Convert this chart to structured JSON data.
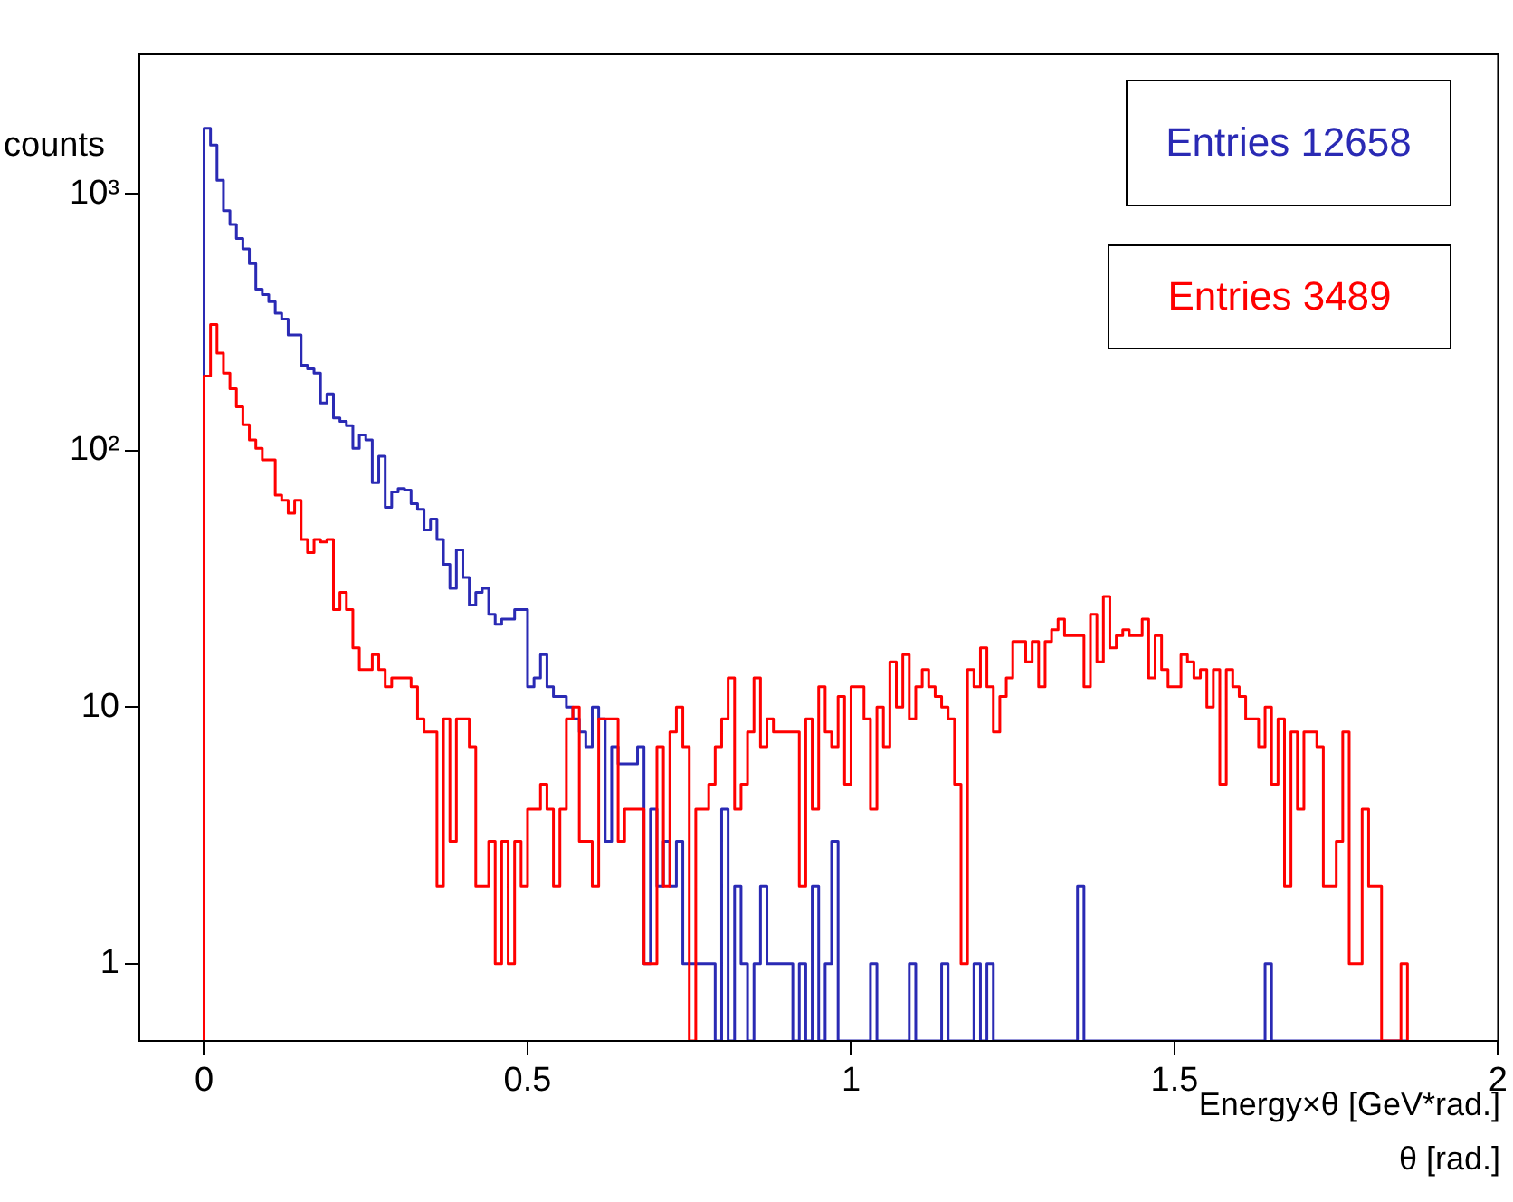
{
  "chart_data": {
    "type": "histogram",
    "xlabel": "Energy×θ [GeV*rad.]",
    "ylabel": "counts",
    "annotations": [
      "Entries 12658",
      "Entries 3489",
      "θ [rad.]"
    ],
    "xlim": [
      -0.1,
      2
    ],
    "xticks": [
      0,
      0.5,
      1,
      1.5,
      2
    ],
    "ylim": [
      0.5,
      3500
    ],
    "yticks": [
      1,
      10,
      {
        "value": 100,
        "label": "10²"
      },
      {
        "value": 1000,
        "label": "10³"
      }
    ],
    "log": "y",
    "bins": [
      0,
      0.01,
      0.02,
      0.03,
      0.04,
      0.05,
      0.06,
      0.07,
      0.08,
      0.09,
      0.1,
      0.11,
      0.12,
      0.13,
      0.14,
      0.15,
      0.16,
      0.17,
      0.18,
      0.19,
      0.2,
      0.21,
      0.22,
      0.23,
      0.24,
      0.25,
      0.26,
      0.27,
      0.28,
      0.29,
      0.3,
      0.31,
      0.32,
      0.33,
      0.34,
      0.35,
      0.36,
      0.37,
      0.38,
      0.39,
      0.4,
      0.41,
      0.42,
      0.43,
      0.44,
      0.45,
      0.46,
      0.47,
      0.48,
      0.49,
      0.5,
      0.51,
      0.52,
      0.53,
      0.54,
      0.55,
      0.56,
      0.57,
      0.58,
      0.59,
      0.6,
      0.61,
      0.62,
      0.63,
      0.64,
      0.65,
      0.66,
      0.67,
      0.68,
      0.69,
      0.7,
      0.71,
      0.72,
      0.73,
      0.74,
      0.75,
      0.76,
      0.77,
      0.78,
      0.79,
      0.8,
      0.81,
      0.82,
      0.83,
      0.84,
      0.85,
      0.86,
      0.87,
      0.88,
      0.89,
      0.9,
      0.91,
      0.92,
      0.93,
      0.94,
      0.95,
      0.96,
      0.97,
      0.98,
      0.99,
      1,
      1.01,
      1.02,
      1.03,
      1.04,
      1.05,
      1.06,
      1.07,
      1.08,
      1.09,
      1.1,
      1.11,
      1.12,
      1.13,
      1.14,
      1.15,
      1.16,
      1.17,
      1.18,
      1.19,
      1.2,
      1.21,
      1.22,
      1.23,
      1.24,
      1.25,
      1.26,
      1.27,
      1.28,
      1.29,
      1.3,
      1.31,
      1.32,
      1.33,
      1.34,
      1.35,
      1.36,
      1.37,
      1.38,
      1.39,
      1.4,
      1.41,
      1.42,
      1.43,
      1.44,
      1.45,
      1.46,
      1.47,
      1.48,
      1.49,
      1.5,
      1.51,
      1.52,
      1.53,
      1.54,
      1.55,
      1.56,
      1.57,
      1.58,
      1.59,
      1.6,
      1.61,
      1.62,
      1.63,
      1.64,
      1.65,
      1.66,
      1.67,
      1.68,
      1.69,
      1.7,
      1.71,
      1.72,
      1.73,
      1.74,
      1.75,
      1.76,
      1.77,
      1.78,
      1.79,
      1.8,
      1.81,
      1.82,
      1.83,
      1.84,
      1.85,
      1.86
    ],
    "series": [
      {
        "color": "#2a2ab4",
        "values": [
          1800,
          1550,
          1130,
          860,
          760,
          670,
          610,
          535,
          425,
          405,
          380,
          343,
          325,
          282,
          282,
          215,
          208,
          200,
          153,
          166,
          134,
          130,
          125,
          102,
          115,
          110,
          75,
          95,
          60,
          69,
          71,
          70,
          62,
          59,
          49,
          54,
          45,
          36,
          29,
          41,
          32,
          25,
          28,
          29,
          23,
          21,
          22,
          22,
          24,
          24,
          12,
          13,
          16,
          12,
          11,
          11,
          10,
          9,
          8,
          7,
          10,
          9,
          3,
          7,
          6,
          6,
          6,
          7,
          1,
          4,
          2,
          3,
          2,
          3,
          1,
          1,
          1,
          1,
          1,
          null,
          4,
          null,
          2,
          1,
          null,
          1,
          2,
          1,
          1,
          1,
          1,
          null,
          1,
          null,
          2,
          null,
          1,
          3,
          null,
          null,
          null,
          null,
          null,
          1,
          null,
          null,
          null,
          null,
          null,
          1,
          null,
          null,
          null,
          null,
          1,
          null,
          null,
          null,
          null,
          1,
          null,
          1,
          null,
          null,
          null,
          null,
          null,
          null,
          null,
          null,
          null,
          null,
          null,
          null,
          null,
          2,
          null,
          null,
          null,
          null,
          null,
          null,
          null,
          null,
          null,
          null,
          null,
          null,
          null,
          null,
          null,
          null,
          null,
          null,
          null,
          null,
          null,
          null,
          null,
          null,
          null,
          null,
          null,
          null,
          1,
          null,
          null,
          null,
          null,
          null,
          null,
          null,
          null,
          null,
          null,
          null,
          null,
          null,
          null,
          null,
          null,
          null,
          null,
          null,
          null,
          null
        ]
      },
      {
        "color": "#ff0000",
        "values": [
          195,
          310,
          240,
          200,
          174,
          148,
          126,
          110,
          102,
          92,
          92,
          67,
          64,
          57,
          64,
          45,
          40,
          45,
          44,
          45,
          24,
          28,
          24,
          17,
          14,
          14,
          16,
          14,
          12,
          13,
          13,
          13,
          12,
          9,
          8,
          8,
          2,
          9,
          3,
          9,
          9,
          7,
          2,
          2,
          3,
          1,
          3,
          1,
          3,
          2,
          4,
          4,
          5,
          4,
          2,
          4,
          9,
          10,
          3,
          3,
          2,
          9,
          9,
          9,
          3,
          4,
          4,
          4,
          1,
          1,
          7,
          2,
          8,
          10,
          7,
          null,
          4,
          4,
          5,
          7,
          9,
          13,
          4,
          5,
          8,
          13,
          7,
          9,
          8,
          8,
          8,
          8,
          2,
          9,
          4,
          12,
          8,
          7,
          11,
          5,
          12,
          12,
          9,
          4,
          10,
          7,
          15,
          10,
          16,
          9,
          12,
          14,
          12,
          11,
          10,
          9,
          5,
          1,
          14,
          12,
          17,
          12,
          8,
          11,
          13,
          18,
          18,
          15,
          18,
          12,
          18,
          20,
          22,
          19,
          19,
          19,
          12,
          23,
          15,
          27,
          17,
          19,
          20,
          19,
          19,
          22,
          13,
          19,
          14,
          12,
          12,
          16,
          15,
          13,
          14,
          10,
          14,
          5,
          14,
          12,
          11,
          9,
          9,
          7,
          10,
          5,
          9,
          2,
          8,
          4,
          8,
          8,
          7,
          2,
          2,
          3,
          8,
          1,
          1,
          4,
          2,
          2,
          null,
          null,
          null,
          1
        ]
      }
    ]
  }
}
